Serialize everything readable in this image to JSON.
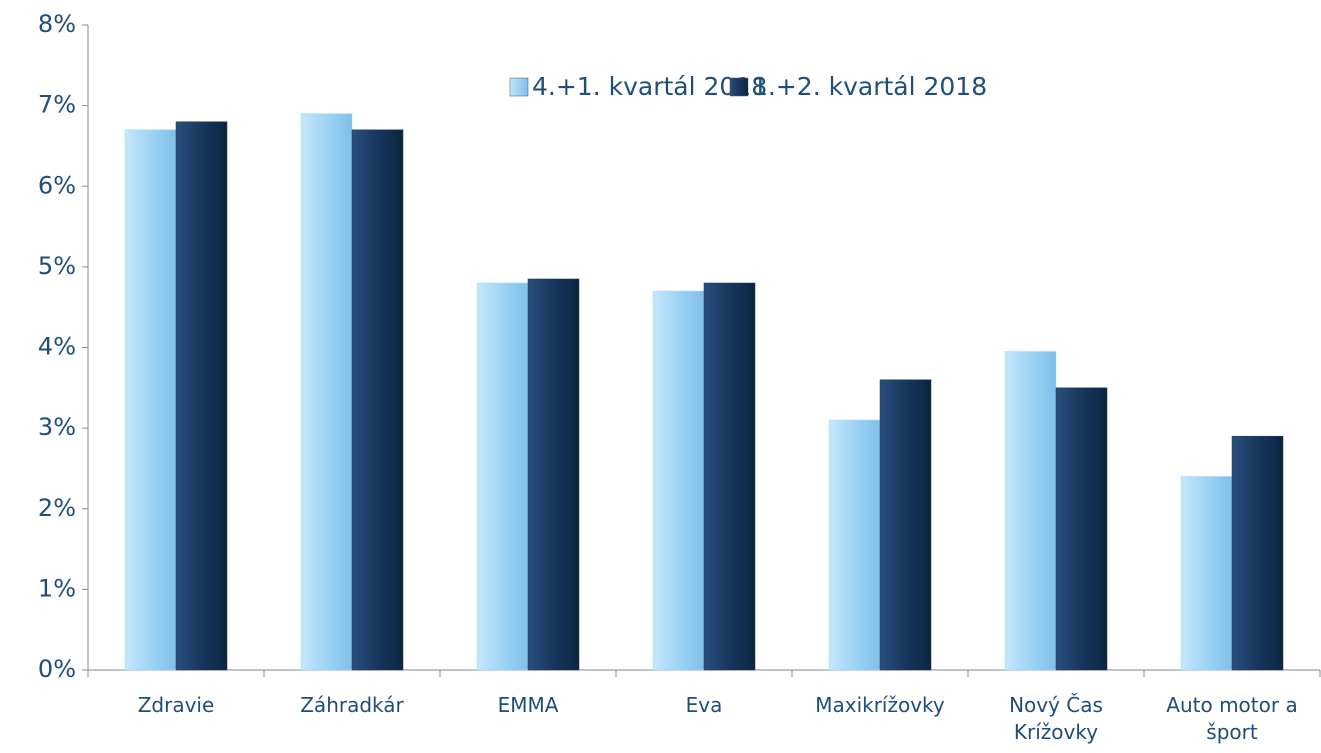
{
  "chart_data": {
    "type": "bar",
    "categories": [
      "Zdravie",
      "Záhradkár",
      "EMMA",
      "Eva",
      "Maxikrížovky",
      "Nový Čas Krížovky",
      "Auto motor a šport"
    ],
    "series": [
      {
        "name": "4.+1. kvartál 2018",
        "color": "#9fd3f5",
        "values": [
          6.7,
          6.9,
          4.8,
          4.7,
          3.1,
          3.95,
          2.4
        ]
      },
      {
        "name": "1.+2. kvartál 2018",
        "color": "#17375e",
        "values": [
          6.8,
          6.7,
          4.85,
          4.8,
          3.6,
          3.5,
          2.9
        ]
      }
    ],
    "ylim": [
      0,
      8
    ],
    "yticks": [
      {
        "value": 0,
        "label": "0%"
      },
      {
        "value": 1,
        "label": "1%"
      },
      {
        "value": 2,
        "label": "2%"
      },
      {
        "value": 3,
        "label": "3%"
      },
      {
        "value": 4,
        "label": "4%"
      },
      {
        "value": 5,
        "label": "5%"
      },
      {
        "value": 6,
        "label": "6%"
      },
      {
        "value": 7,
        "label": "7%"
      },
      {
        "value": 8,
        "label": "8%"
      }
    ],
    "grid": false,
    "legend": "top"
  }
}
